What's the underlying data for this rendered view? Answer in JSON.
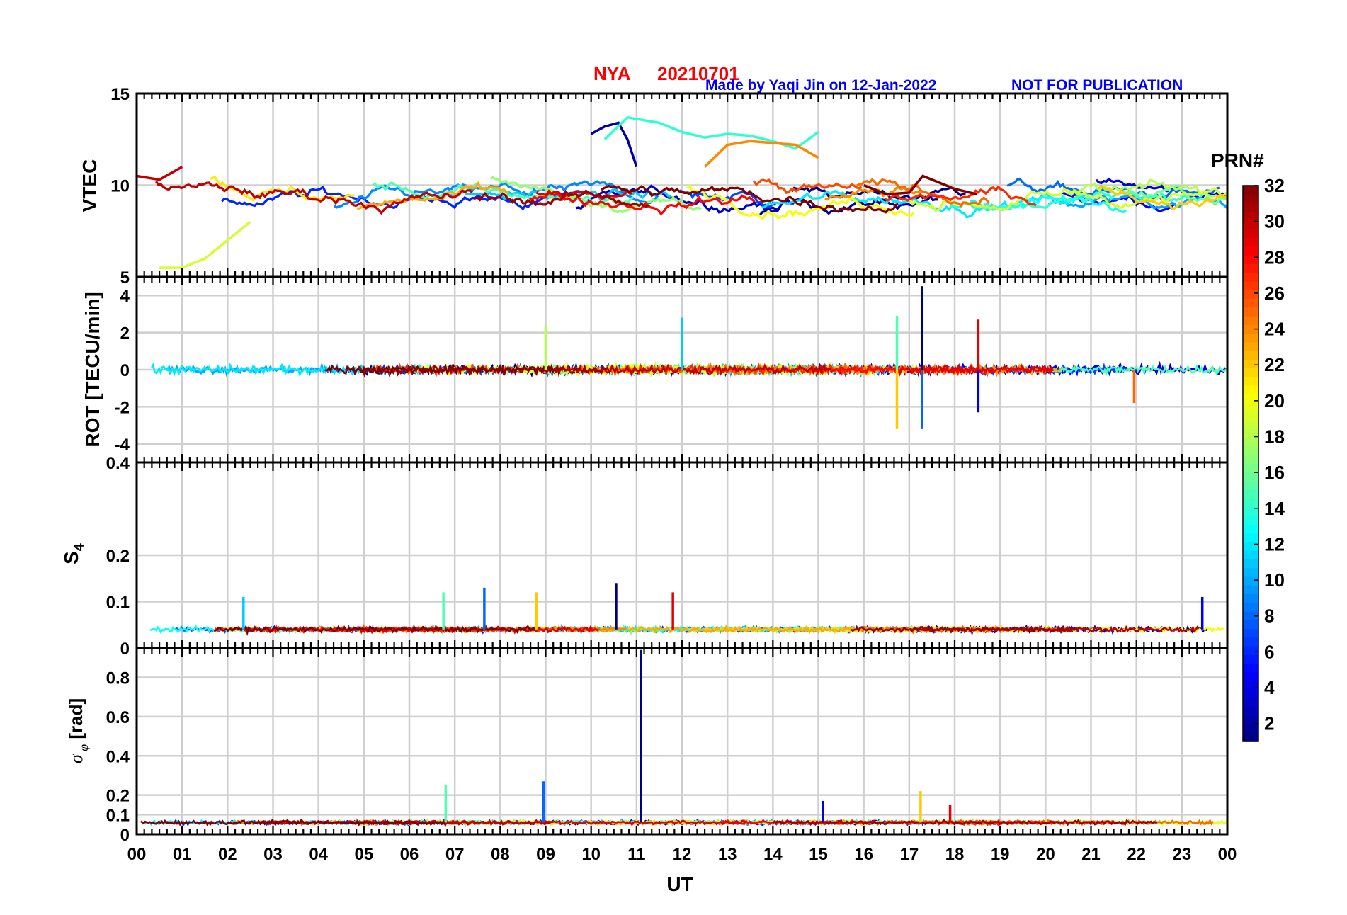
{
  "header": {
    "station": "NYA",
    "date": "20210701",
    "credit": "Made by Yaqi Jin on 12-Jan-2022",
    "notice": "NOT FOR PUBLICATION"
  },
  "colors": {
    "header_red": "#ff0000",
    "header_blue": "#0000ff",
    "grid": "#d0d0d0",
    "axis": "#000000"
  },
  "chart_data": [
    {
      "type": "line",
      "ylabel": "VTEC",
      "ylim": [
        5,
        15
      ],
      "yticks": [
        5,
        10,
        15
      ],
      "grid": true,
      "series_by": "PRN",
      "note": "one line per GPS PRN (1-32), colour from PRN colorbar",
      "series": [
        {
          "prn": 2,
          "x": [
            10.0,
            10.3,
            10.6,
            10.8,
            11.0
          ],
          "y": [
            12.8,
            13.2,
            13.4,
            12.5,
            11.0
          ]
        },
        {
          "prn": 14,
          "x": [
            10.3,
            10.8,
            11.5,
            12.0,
            12.5,
            13.0,
            13.5,
            14.0,
            14.5,
            15.0
          ],
          "y": [
            12.5,
            13.7,
            13.4,
            12.9,
            12.6,
            12.8,
            12.7,
            12.4,
            12.0,
            12.9
          ]
        },
        {
          "prn": 24,
          "x": [
            12.5,
            13.0,
            13.5,
            14.0,
            14.5,
            15.0
          ],
          "y": [
            11.0,
            12.2,
            12.4,
            12.3,
            12.2,
            11.5
          ]
        },
        {
          "prn": 32,
          "x": [
            16.0,
            16.5,
            17.0,
            17.3,
            17.6,
            18.0,
            18.5
          ],
          "y": [
            10.0,
            9.5,
            9.6,
            10.5,
            10.2,
            9.8,
            9.5
          ]
        },
        {
          "prn": 30,
          "x": [
            0.0,
            0.5,
            1.0
          ],
          "y": [
            10.5,
            10.3,
            11.0
          ]
        },
        {
          "prn": 19,
          "x": [
            0.5,
            1.0,
            1.5,
            2.0,
            2.5
          ],
          "y": [
            5.5,
            5.5,
            6.0,
            7.0,
            8.0
          ]
        }
      ]
    },
    {
      "type": "line",
      "ylabel": "ROT [TECU/min]",
      "ylim": [
        -5,
        5
      ],
      "yticks": [
        -4,
        -2,
        0,
        2,
        4
      ],
      "grid": true,
      "peaks": [
        {
          "x": 17.28,
          "y": 4.5
        },
        {
          "x": 17.28,
          "y": -3.2
        },
        {
          "x": 16.73,
          "y": 2.9
        },
        {
          "x": 16.73,
          "y": -3.2
        },
        {
          "x": 18.52,
          "y": 2.7
        },
        {
          "x": 18.52,
          "y": -2.3
        },
        {
          "x": 12.0,
          "y": 2.8
        },
        {
          "x": 9.0,
          "y": 2.4
        },
        {
          "x": 21.95,
          "y": -1.8
        }
      ]
    },
    {
      "type": "line",
      "ylabel": "S4",
      "ylim": [
        0,
        0.4
      ],
      "yticks": [
        0,
        0.1,
        0.2,
        0.4
      ],
      "grid": true,
      "peaks": [
        {
          "x": 10.55,
          "y": 0.14
        },
        {
          "x": 7.65,
          "y": 0.13
        },
        {
          "x": 6.75,
          "y": 0.12
        },
        {
          "x": 8.8,
          "y": 0.12
        },
        {
          "x": 11.8,
          "y": 0.12
        },
        {
          "x": 23.45,
          "y": 0.11
        },
        {
          "x": 2.35,
          "y": 0.11
        }
      ]
    },
    {
      "type": "line",
      "ylabel": "σφ [rad]",
      "ylim": [
        0,
        0.95
      ],
      "yticks": [
        0,
        0.1,
        0.2,
        0.4,
        0.6,
        0.8
      ],
      "grid": true,
      "peaks": [
        {
          "x": 11.1,
          "y": 0.94
        },
        {
          "x": 8.95,
          "y": 0.27
        },
        {
          "x": 6.8,
          "y": 0.25
        },
        {
          "x": 17.25,
          "y": 0.22
        },
        {
          "x": 17.9,
          "y": 0.15
        },
        {
          "x": 15.1,
          "y": 0.17
        }
      ]
    }
  ],
  "xaxis": {
    "label": "UT",
    "xlim": [
      0,
      24
    ],
    "ticks": [
      "00",
      "01",
      "02",
      "03",
      "04",
      "05",
      "06",
      "07",
      "08",
      "09",
      "10",
      "11",
      "12",
      "13",
      "14",
      "15",
      "16",
      "17",
      "18",
      "19",
      "20",
      "21",
      "22",
      "23",
      "00"
    ]
  },
  "colorbar": {
    "label": "PRN#",
    "range": [
      1,
      32
    ],
    "ticks": [
      2,
      4,
      6,
      8,
      10,
      12,
      14,
      16,
      18,
      20,
      22,
      24,
      26,
      28,
      30,
      32
    ],
    "colormap": "jet"
  }
}
